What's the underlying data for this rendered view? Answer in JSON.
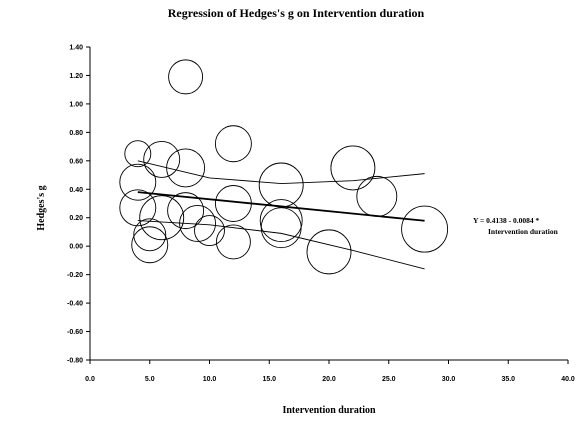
{
  "chart_data": {
    "type": "scatter",
    "title": "Regression of Hedges's g on Intervention duration",
    "xlabel": "Intervention duration",
    "ylabel": "Hedges's g",
    "xlim": [
      0,
      40
    ],
    "ylim": [
      -0.8,
      1.4
    ],
    "x_ticks": [
      "0.0",
      "5.0",
      "10.0",
      "15.0",
      "20.0",
      "25.0",
      "30.0",
      "35.0",
      "40.0"
    ],
    "y_ticks": [
      "1.40",
      "1.20",
      "1.00",
      "0.80",
      "0.60",
      "0.40",
      "0.20",
      "0.00",
      "-0.20",
      "-0.40",
      "-0.60",
      "-0.80"
    ],
    "points": [
      {
        "x": 8.0,
        "y": 1.19,
        "r": 17
      },
      {
        "x": 4.0,
        "y": 0.65,
        "r": 13
      },
      {
        "x": 6.0,
        "y": 0.61,
        "r": 18
      },
      {
        "x": 8.0,
        "y": 0.55,
        "r": 19
      },
      {
        "x": 12.0,
        "y": 0.72,
        "r": 18
      },
      {
        "x": 22.0,
        "y": 0.55,
        "r": 22
      },
      {
        "x": 4.0,
        "y": 0.45,
        "r": 18
      },
      {
        "x": 16.0,
        "y": 0.43,
        "r": 22
      },
      {
        "x": 24.0,
        "y": 0.35,
        "r": 20
      },
      {
        "x": 4.0,
        "y": 0.27,
        "r": 18
      },
      {
        "x": 12.0,
        "y": 0.3,
        "r": 18
      },
      {
        "x": 6.0,
        "y": 0.2,
        "r": 22
      },
      {
        "x": 8.0,
        "y": 0.25,
        "r": 18
      },
      {
        "x": 9.0,
        "y": 0.16,
        "r": 18
      },
      {
        "x": 16.0,
        "y": 0.18,
        "r": 21
      },
      {
        "x": 28.0,
        "y": 0.12,
        "r": 23
      },
      {
        "x": 10.0,
        "y": 0.11,
        "r": 15
      },
      {
        "x": 5.0,
        "y": 0.08,
        "r": 16
      },
      {
        "x": 16.0,
        "y": 0.13,
        "r": 20
      },
      {
        "x": 12.0,
        "y": 0.03,
        "r": 17
      },
      {
        "x": 5.0,
        "y": 0.01,
        "r": 18
      },
      {
        "x": 20.0,
        "y": -0.04,
        "r": 22
      }
    ],
    "regression": {
      "x_start": 4.0,
      "x_end": 28.0,
      "intercept": 0.4138,
      "slope": -0.0084,
      "equation_line1": "Y = 0.4138 - 0.0084 *",
      "equation_line2": "Intervention duration"
    },
    "ci_upper": {
      "x": [
        4.0,
        10.0,
        16.0,
        22.0,
        28.0
      ],
      "y": [
        0.6,
        0.48,
        0.44,
        0.46,
        0.51
      ]
    },
    "ci_lower": {
      "x": [
        4.0,
        10.0,
        16.0,
        22.0,
        28.0
      ],
      "y": [
        0.18,
        0.15,
        0.09,
        -0.03,
        -0.16
      ]
    },
    "grid": false,
    "colors": {
      "line": "#000000",
      "bubble": "#000000",
      "background": "#ffffff"
    }
  }
}
